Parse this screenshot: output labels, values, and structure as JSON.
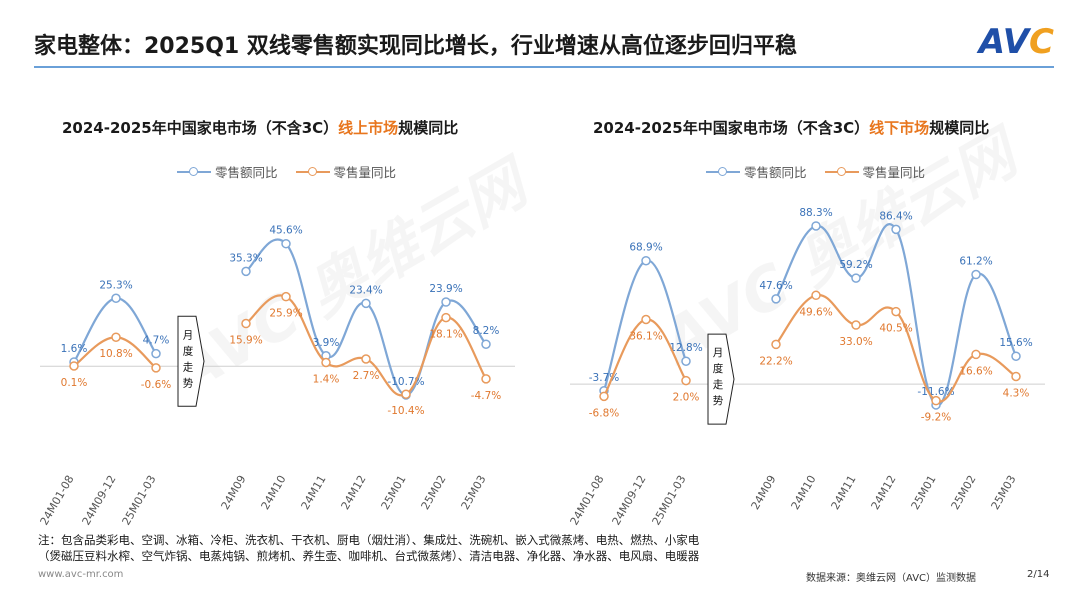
{
  "header": {
    "title": "家电整体：2025Q1 双线零售额实现同比增长，行业增速从高位逐步回归平稳",
    "logo_main": "AV",
    "logo_accent": "C"
  },
  "monthly_label": [
    "月",
    "度",
    "走",
    "势"
  ],
  "chart_data": [
    {
      "type": "line",
      "title_prefix": "2024-2025年中国家电市场（不含3C）",
      "title_highlight": "线上市场",
      "title_suffix": "规模同比",
      "categories": [
        "24M01-08",
        "24M09-12",
        "25M01-03",
        "24M09",
        "24M10",
        "24M11",
        "24M12",
        "25M01",
        "25M02",
        "25M03"
      ],
      "groups": [
        [
          0,
          1,
          2
        ],
        [
          3,
          4,
          5,
          6,
          7,
          8,
          9
        ]
      ],
      "ylim": [
        -20,
        60
      ],
      "legend": [
        "零售额同比",
        "零售量同比"
      ],
      "series": [
        {
          "name": "零售额同比",
          "values": [
            1.6,
            25.3,
            4.7,
            35.3,
            45.6,
            3.9,
            23.4,
            -10.7,
            23.9,
            8.2
          ],
          "labels": [
            "1.6%",
            "25.3%",
            "4.7%",
            "35.3%",
            "45.6%",
            "3.9%",
            "23.4%",
            "-10.7%",
            "23.9%",
            "8.2%"
          ]
        },
        {
          "name": "零售量同比",
          "values": [
            0.1,
            10.8,
            -0.6,
            15.9,
            25.9,
            1.4,
            2.7,
            -10.4,
            18.1,
            -4.7
          ],
          "labels": [
            "0.1%",
            "10.8%",
            "-0.6%",
            "15.9%",
            "25.9%",
            "1.4%",
            "2.7%",
            "-10.4%",
            "18.1%",
            "-4.7%"
          ]
        }
      ]
    },
    {
      "type": "line",
      "title_prefix": "2024-2025年中国家电市场（不含3C）",
      "title_highlight": "线下市场",
      "title_suffix": "规模同比",
      "categories": [
        "24M01-08",
        "24M09-12",
        "25M01-03",
        "24M09",
        "24M10",
        "24M11",
        "24M12",
        "25M01",
        "25M02",
        "25M03"
      ],
      "groups": [
        [
          0,
          1,
          2
        ],
        [
          3,
          4,
          5,
          6,
          7,
          8,
          9
        ]
      ],
      "ylim": [
        -20,
        100
      ],
      "legend": [
        "零售额同比",
        "零售量同比"
      ],
      "series": [
        {
          "name": "零售额同比",
          "values": [
            -3.7,
            68.9,
            12.8,
            47.6,
            88.3,
            59.2,
            86.4,
            -11.6,
            61.2,
            15.6
          ],
          "labels": [
            "-3.7%",
            "68.9%",
            "12.8%",
            "47.6%",
            "88.3%",
            "59.2%",
            "86.4%",
            "-11.6%",
            "61.2%",
            "15.6%"
          ]
        },
        {
          "name": "零售量同比",
          "values": [
            -6.8,
            36.1,
            2.0,
            22.2,
            49.6,
            33.0,
            40.5,
            -9.2,
            16.6,
            4.3
          ],
          "labels": [
            "-6.8%",
            "36.1%",
            "2.0%",
            "22.2%",
            "49.6%",
            "33.0%",
            "40.5%",
            "-9.2%",
            "16.6%",
            "4.3%"
          ]
        }
      ]
    }
  ],
  "colors": {
    "amount": "#7fa7d6",
    "amount_label": "#3a72b8",
    "volume": "#e89a5c",
    "volume_label": "#e0782e",
    "accent": "#e8761e"
  },
  "note": {
    "line1": "注：包含品类彩电、空调、冰箱、冷柜、洗衣机、干衣机、厨电（烟灶消）、集成灶、洗碗机、嵌入式微蒸烤、电热、燃热、小家电",
    "line2": "（煲磁压豆料水榨、空气炸锅、电蒸炖锅、煎烤机、养生壶、咖啡机、台式微蒸烤）、清洁电器、净化器、净水器、电风扇、电暖器"
  },
  "footer": {
    "url": "www.avc-mr.com",
    "source": "数据来源：奥维云网（AVC）监测数据",
    "page": "2/14"
  }
}
